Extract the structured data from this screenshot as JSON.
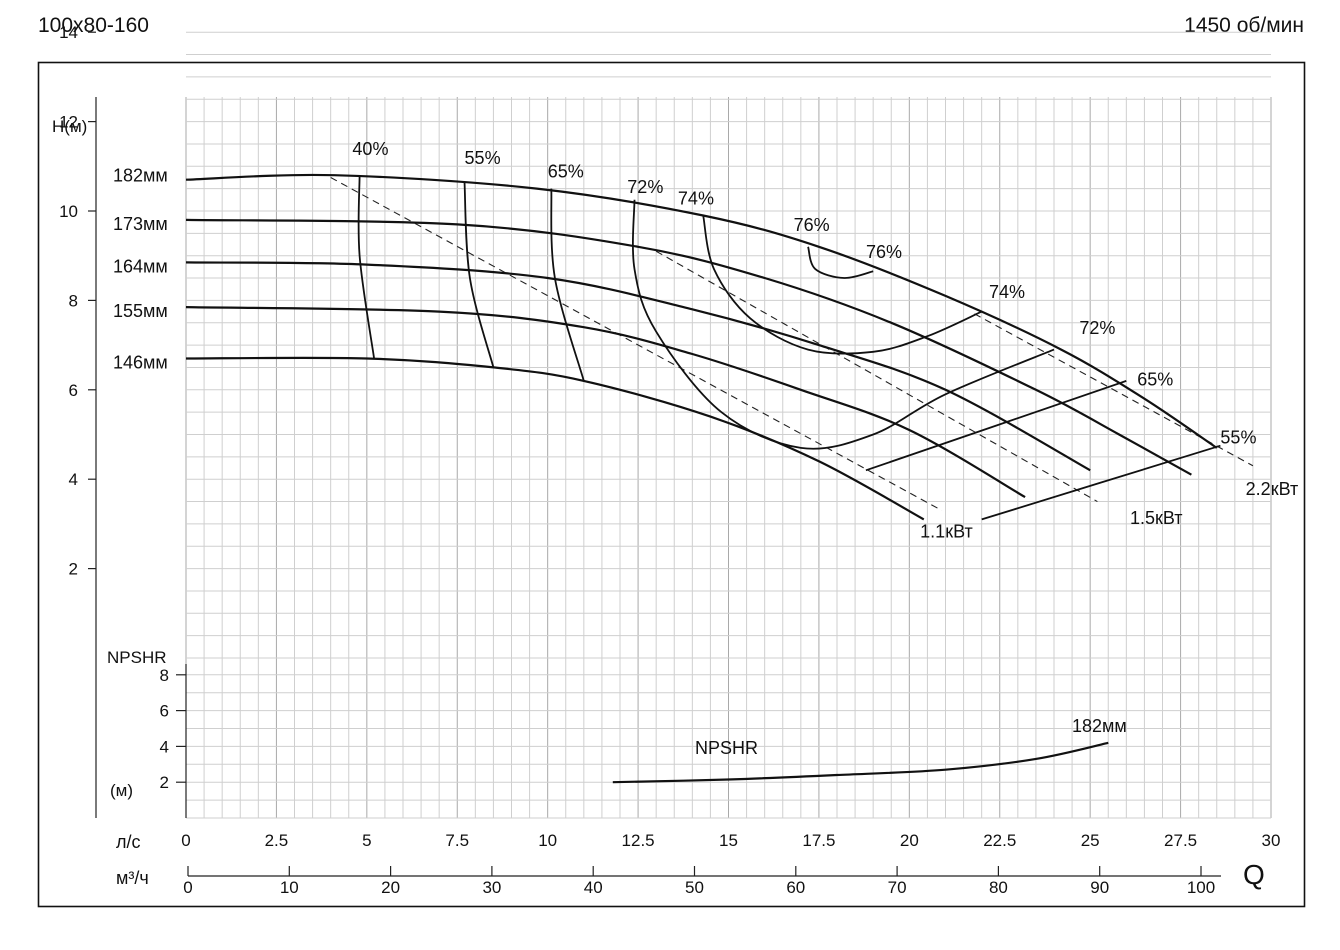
{
  "header": {
    "model": "100x80-160",
    "speed": "1450 об/мин"
  },
  "chart_data": {
    "type": "line",
    "ylabel": "H(м)",
    "y_ticks": [
      "2",
      "4",
      "6",
      "8",
      "10",
      "12",
      "14"
    ],
    "ylim": [
      0,
      14
    ],
    "x_ls_label": "л/с",
    "x_ls_ticks": [
      "0",
      "2.5",
      "5",
      "7.5",
      "10",
      "12.5",
      "15",
      "17.5",
      "20",
      "22.5",
      "25",
      "27.5",
      "30"
    ],
    "x_m3h_label": "м³/ч",
    "x_m3h_ticks": [
      "0",
      "10",
      "20",
      "30",
      "40",
      "50",
      "60",
      "70",
      "80",
      "90",
      "100"
    ],
    "xlim_ls": [
      0,
      30
    ],
    "q_label": "Q",
    "grid": true,
    "head_curves": [
      {
        "name": "182мм",
        "points": [
          [
            0,
            10.7
          ],
          [
            4.1,
            10.8
          ],
          [
            9.7,
            10.5
          ],
          [
            14.3,
            9.9
          ],
          [
            17.5,
            9.2
          ],
          [
            21,
            8.1
          ],
          [
            24.2,
            6.9
          ],
          [
            26.5,
            5.8
          ],
          [
            28.5,
            4.7
          ]
        ]
      },
      {
        "name": "173мм",
        "points": [
          [
            0,
            9.8
          ],
          [
            7.5,
            9.7
          ],
          [
            12.5,
            9.2
          ],
          [
            16,
            8.5
          ],
          [
            19.5,
            7.5
          ],
          [
            23.5,
            6
          ],
          [
            25.8,
            5
          ],
          [
            27.8,
            4.1
          ]
        ]
      },
      {
        "name": "164мм",
        "points": [
          [
            0,
            8.85
          ],
          [
            5,
            8.8
          ],
          [
            10,
            8.5
          ],
          [
            14,
            7.8
          ],
          [
            17.5,
            7
          ],
          [
            21,
            6
          ],
          [
            25,
            4.2
          ]
        ]
      },
      {
        "name": "155мм",
        "points": [
          [
            0,
            7.85
          ],
          [
            7,
            7.75
          ],
          [
            11,
            7.4
          ],
          [
            14,
            6.8
          ],
          [
            17,
            6
          ],
          [
            20,
            5.1
          ],
          [
            23.2,
            3.6
          ]
        ]
      },
      {
        "name": "146мм",
        "points": [
          [
            0,
            6.7
          ],
          [
            5,
            6.7
          ],
          [
            8.5,
            6.5
          ],
          [
            11,
            6.2
          ],
          [
            14.5,
            5.4
          ],
          [
            17.5,
            4.4
          ],
          [
            20.4,
            3.1
          ]
        ]
      }
    ],
    "efficiency_curves": [
      {
        "label": "40%",
        "points": [
          [
            4.8,
            10.8
          ],
          [
            4.8,
            9
          ],
          [
            5.2,
            6.7
          ]
        ]
      },
      {
        "label": "55%",
        "points": [
          [
            7.7,
            10.65
          ],
          [
            7.85,
            8.5
          ],
          [
            8.5,
            6.5
          ]
        ]
      },
      {
        "label": "65%",
        "points": [
          [
            10.1,
            10.5
          ],
          [
            10.2,
            8.5
          ],
          [
            11,
            6.2
          ]
        ]
      },
      {
        "label": "72%",
        "points": [
          [
            12.4,
            10.25
          ],
          [
            12.4,
            8.7
          ],
          [
            13,
            7.3
          ],
          [
            14.8,
            5.5
          ],
          [
            17,
            4.7
          ],
          [
            19,
            5
          ],
          [
            21,
            5.9
          ],
          [
            24,
            6.9
          ]
        ]
      },
      {
        "label": "74%",
        "points": [
          [
            14.3,
            9.9
          ],
          [
            14.6,
            8.7
          ],
          [
            15.6,
            7.6
          ],
          [
            17.2,
            6.9
          ],
          [
            19,
            6.85
          ],
          [
            20.5,
            7.2
          ],
          [
            22,
            7.75
          ]
        ]
      },
      {
        "label": "76%",
        "points": [
          [
            17.2,
            9.2
          ],
          [
            17.4,
            8.7
          ],
          [
            18.2,
            8.5
          ],
          [
            19,
            8.65
          ]
        ]
      },
      {
        "label": "65%",
        "points": [
          [
            18.8,
            4.2
          ],
          [
            26,
            6.2
          ]
        ]
      },
      {
        "label": "55%",
        "points": [
          [
            22,
            3.1
          ],
          [
            28.6,
            4.75
          ]
        ]
      }
    ],
    "efficiency_labels": [
      {
        "text": "40%",
        "x": 5.1,
        "y": 11.25
      },
      {
        "text": "55%",
        "x": 8.2,
        "y": 11.05
      },
      {
        "text": "65%",
        "x": 10.5,
        "y": 10.75
      },
      {
        "text": "72%",
        "x": 12.7,
        "y": 10.4
      },
      {
        "text": "74%",
        "x": 14.1,
        "y": 10.15
      },
      {
        "text": "76%",
        "x": 17.3,
        "y": 9.55
      },
      {
        "text": "76%",
        "x": 19.3,
        "y": 8.95
      },
      {
        "text": "74%",
        "x": 22.7,
        "y": 8.05
      },
      {
        "text": "72%",
        "x": 25.2,
        "y": 7.25
      },
      {
        "text": "65%",
        "x": 26.8,
        "y": 6.1
      },
      {
        "text": "55%",
        "x": 29.1,
        "y": 4.8
      }
    ],
    "power_lines": [
      {
        "label": "1.1кВт",
        "points": [
          [
            4,
            10.75
          ],
          [
            20.9,
            3.3
          ]
        ],
        "label_at": [
          20.3,
          2.7
        ]
      },
      {
        "label": "1.5кВт",
        "points": [
          [
            13,
            9.1
          ],
          [
            25.2,
            3.5
          ]
        ],
        "label_at": [
          26.1,
          3.0
        ]
      },
      {
        "label": "2.2кВт",
        "points": [
          [
            21.8,
            7.7
          ],
          [
            29.5,
            4.3
          ]
        ],
        "label_at": [
          29.3,
          3.65
        ]
      }
    ],
    "curve_labels": [
      "182мм",
      "173мм",
      "164мм",
      "155мм",
      "146мм"
    ],
    "npshr": {
      "label": "NPSHR",
      "curve_label": "NPSHR",
      "diameter": "182мм",
      "unit": "(м)",
      "y_ticks": [
        "2",
        "4",
        "6",
        "8"
      ],
      "points": [
        [
          11.8,
          2
        ],
        [
          15,
          2.15
        ],
        [
          18,
          2.4
        ],
        [
          21,
          2.7
        ],
        [
          23.5,
          3.3
        ],
        [
          25.5,
          4.2
        ]
      ]
    }
  }
}
